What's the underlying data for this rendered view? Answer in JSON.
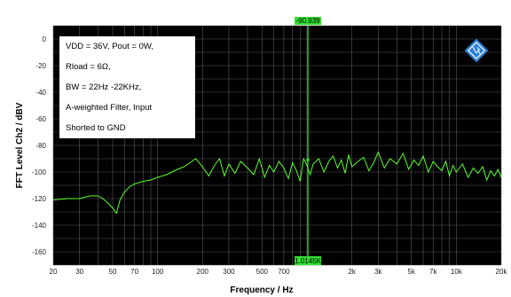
{
  "chart_data": {
    "type": "line",
    "xlabel": "Frequency / Hz",
    "ylabel": "FFT Level Ch2 / dBV",
    "x_scale": "log",
    "xlim": [
      20,
      20000
    ],
    "ylim": [
      -170,
      10
    ],
    "grid": true,
    "background_color": "#000000",
    "grid_color": "#5a5a5a",
    "line_color": "#5cff2e",
    "x_tick_labels": [
      {
        "value": 20,
        "label": "20"
      },
      {
        "value": 30,
        "label": "30"
      },
      {
        "value": 50,
        "label": "50"
      },
      {
        "value": 70,
        "label": "70"
      },
      {
        "value": 100,
        "label": "100"
      },
      {
        "value": 200,
        "label": "200"
      },
      {
        "value": 300,
        "label": "300"
      },
      {
        "value": 500,
        "label": "500"
      },
      {
        "value": 700,
        "label": "700"
      },
      {
        "value": 2000,
        "label": "2k"
      },
      {
        "value": 3000,
        "label": "3k"
      },
      {
        "value": 5000,
        "label": "5k"
      },
      {
        "value": 7000,
        "label": "7k"
      },
      {
        "value": 10000,
        "label": "10k"
      },
      {
        "value": 20000,
        "label": "20k"
      }
    ],
    "y_tick_labels": [
      {
        "value": 0,
        "label": "0"
      },
      {
        "value": -20,
        "label": "-20"
      },
      {
        "value": -40,
        "label": "-40"
      },
      {
        "value": -60,
        "label": "-60"
      },
      {
        "value": -80,
        "label": "-80"
      },
      {
        "value": -100,
        "label": "-100"
      },
      {
        "value": -120,
        "label": "-120"
      },
      {
        "value": -140,
        "label": "-140"
      },
      {
        "value": -160,
        "label": "-160"
      }
    ],
    "annotation_lines": [
      "VDD = 36V, Pout = 0W,",
      "Rload = 6Ω,",
      "BW = 22Hz -22KHz,",
      "A-weighted Filter, Input",
      "Shorted to GND"
    ],
    "cursor": {
      "x": 1014.5,
      "y": -90.939,
      "x_label": "1.0145K",
      "y_label": "-90.939",
      "color": "#33dd33"
    },
    "series": [
      {
        "x": [
          20,
          25,
          30,
          35,
          40,
          43,
          46,
          50,
          53,
          56,
          60,
          65,
          70,
          75,
          80,
          90,
          100,
          115,
          130,
          150,
          165,
          180,
          200,
          220,
          240,
          260,
          280,
          300,
          330,
          360,
          400,
          440,
          480,
          520,
          560,
          600,
          650,
          700,
          750,
          800,
          850,
          900,
          950,
          1000,
          1050,
          1100,
          1200,
          1300,
          1400,
          1500,
          1600,
          1700,
          1800,
          1900,
          2000,
          2200,
          2400,
          2600,
          2800,
          3000,
          3300,
          3600,
          4000,
          4400,
          4800,
          5200,
          5600,
          6000,
          6500,
          7000,
          7500,
          8000,
          8500,
          9000,
          9500,
          10000,
          11000,
          12000,
          13000,
          14000,
          15000,
          16000,
          17000,
          18000,
          19000,
          20000
        ],
        "values": [
          -121,
          -120,
          -120,
          -118,
          -118,
          -120,
          -123,
          -127,
          -131,
          -121,
          -115,
          -111,
          -109,
          -108,
          -107,
          -106,
          -104,
          -102,
          -99,
          -96,
          -93,
          -90,
          -96,
          -103,
          -95,
          -90,
          -103,
          -94,
          -101,
          -92,
          -97,
          -102,
          -90,
          -104,
          -95,
          -100,
          -92,
          -97,
          -105,
          -93,
          -99,
          -107,
          -90,
          -95,
          -102,
          -94,
          -90,
          -100,
          -92,
          -88,
          -97,
          -91,
          -101,
          -87,
          -96,
          -92,
          -89,
          -99,
          -93,
          -85,
          -97,
          -90,
          -94,
          -86,
          -98,
          -91,
          -95,
          -88,
          -100,
          -92,
          -96,
          -99,
          -92,
          -103,
          -95,
          -100,
          -94,
          -104,
          -97,
          -101,
          -96,
          -106,
          -99,
          -103,
          -98,
          -104
        ]
      }
    ]
  }
}
